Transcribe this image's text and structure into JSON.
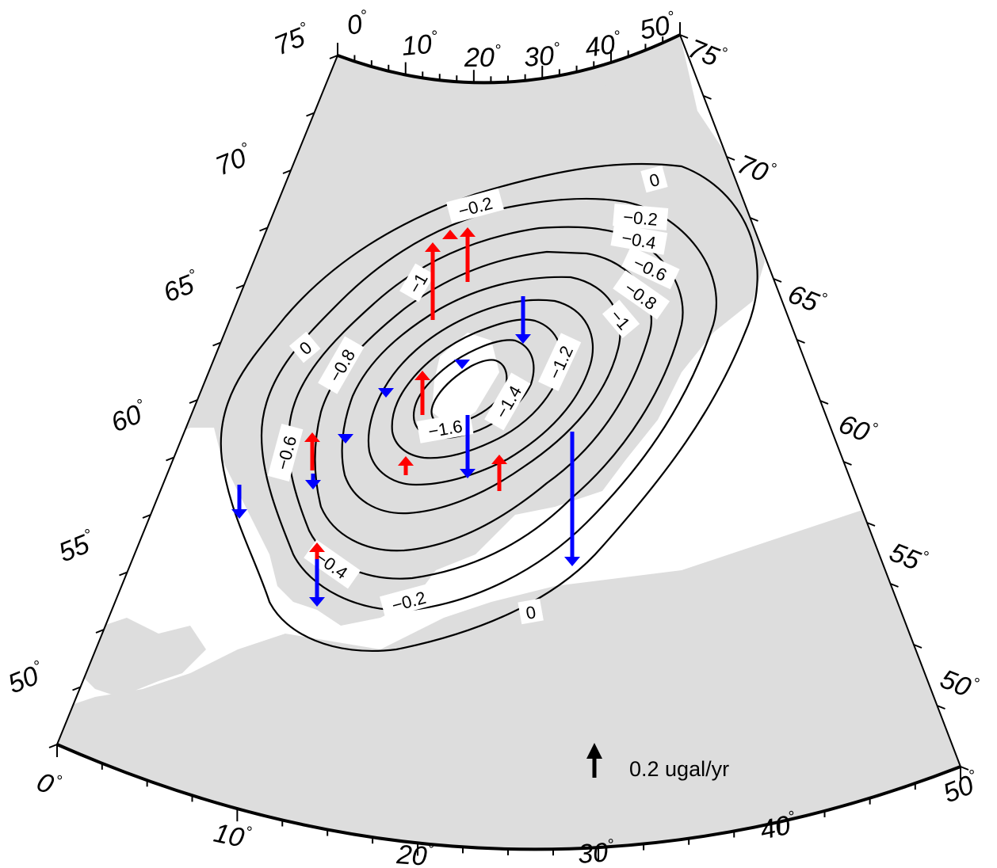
{
  "map": {
    "frame": {
      "top_lon_labels": [
        "0",
        "10",
        "20",
        "30",
        "40",
        "50"
      ],
      "bottom_lon_labels": [
        "0",
        "10",
        "20",
        "30",
        "40",
        "50"
      ],
      "left_lat_labels": [
        "75",
        "70",
        "65",
        "60",
        "55",
        "50"
      ],
      "right_lat_labels": [
        "75",
        "70",
        "65",
        "60",
        "55",
        "50"
      ],
      "degree_symbol": "°"
    },
    "contours": {
      "levels": [
        0,
        -0.2,
        -0.4,
        -0.6,
        -0.8,
        -1,
        -1.2,
        -1.4,
        -1.6
      ],
      "labels": [
        "0",
        "−0.2",
        "−0.4",
        "−0.6",
        "−0.8",
        "−1",
        "−1.2",
        "−1.4",
        "−1.6",
        "−0.8",
        "−0.6",
        "0",
        "−0.2",
        "−0.2",
        "0",
        "−1",
        "−0.4"
      ]
    },
    "vectors": {
      "positive_color": "#ff0000",
      "negative_color": "#0000ff",
      "up_count": 9,
      "down_count": 8
    },
    "legend": {
      "label": "0.2 ugal/yr",
      "arrow_color": "#000000"
    },
    "land_color": "#dddddd"
  }
}
